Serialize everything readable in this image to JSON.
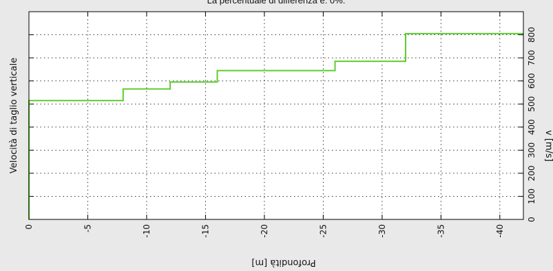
{
  "chart_data": {
    "type": "line",
    "step": true,
    "title": "La percentuale di differenza è: 0%.",
    "ylabel_left": "Velocità di taglio verticale",
    "ylabel_right": "v [m/s]",
    "xlabel": "Profondità [m]",
    "xlim": [
      0,
      -42
    ],
    "ylim": [
      0,
      900
    ],
    "x_ticks": [
      0,
      -5,
      -10,
      -15,
      -20,
      -25,
      -30,
      -35,
      -40
    ],
    "x_tick_labels": [
      "0",
      "-5",
      "-10",
      "-15",
      "-20",
      "-25",
      "-30",
      "-35",
      "-40"
    ],
    "y_ticks": [
      0,
      100,
      200,
      300,
      400,
      500,
      600,
      700,
      800
    ],
    "y_tick_labels": [
      "0",
      "100",
      "200",
      "300",
      "400",
      "500",
      "600",
      "700",
      "800"
    ],
    "grid": true,
    "grid_style": "dotted",
    "series": [
      {
        "color": "#5ccd2c",
        "x": [
          0,
          0,
          -8,
          -8,
          -12,
          -12,
          -16,
          -16,
          -26,
          -26,
          -32,
          -32,
          -42
        ],
        "y": [
          0,
          515,
          515,
          565,
          565,
          595,
          595,
          645,
          645,
          685,
          685,
          805,
          805
        ]
      }
    ]
  }
}
